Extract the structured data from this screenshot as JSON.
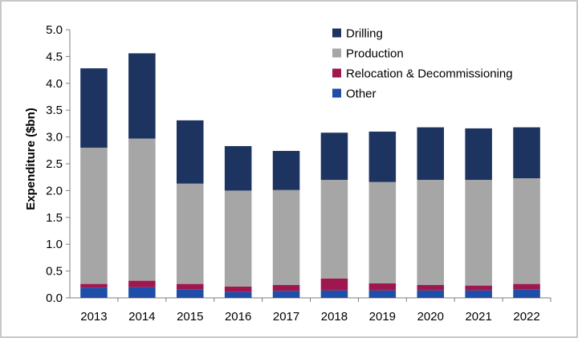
{
  "chart_data": {
    "type": "bar",
    "stacked": true,
    "categories": [
      "2013",
      "2014",
      "2015",
      "2016",
      "2017",
      "2018",
      "2019",
      "2020",
      "2021",
      "2022"
    ],
    "series": [
      {
        "name": "Other",
        "color": "#1f4ea8",
        "values": [
          0.19,
          0.2,
          0.16,
          0.11,
          0.13,
          0.14,
          0.14,
          0.14,
          0.14,
          0.16
        ]
      },
      {
        "name": "Relocation & Decommissioning",
        "color": "#a0174f",
        "values": [
          0.07,
          0.12,
          0.1,
          0.1,
          0.11,
          0.22,
          0.13,
          0.1,
          0.09,
          0.1
        ]
      },
      {
        "name": "Production",
        "color": "#a6a6a6",
        "values": [
          2.54,
          2.65,
          1.87,
          1.79,
          1.77,
          1.84,
          1.89,
          1.96,
          1.97,
          1.97
        ]
      },
      {
        "name": "Drilling",
        "color": "#1d3461",
        "values": [
          1.48,
          1.59,
          1.18,
          0.83,
          0.73,
          0.88,
          0.94,
          0.98,
          0.96,
          0.95
        ]
      }
    ],
    "ylabel": "Expenditure ($bn)",
    "xlabel": "",
    "ylim": [
      0,
      5
    ],
    "yticks": [
      "0.0",
      "0.5",
      "1.0",
      "1.5",
      "2.0",
      "2.5",
      "3.0",
      "3.5",
      "4.0",
      "4.5",
      "5.0"
    ],
    "legend_order": [
      "Drilling",
      "Production",
      "Relocation & Decommissioning",
      "Other"
    ],
    "legend_position": "top-right",
    "grid": false
  }
}
